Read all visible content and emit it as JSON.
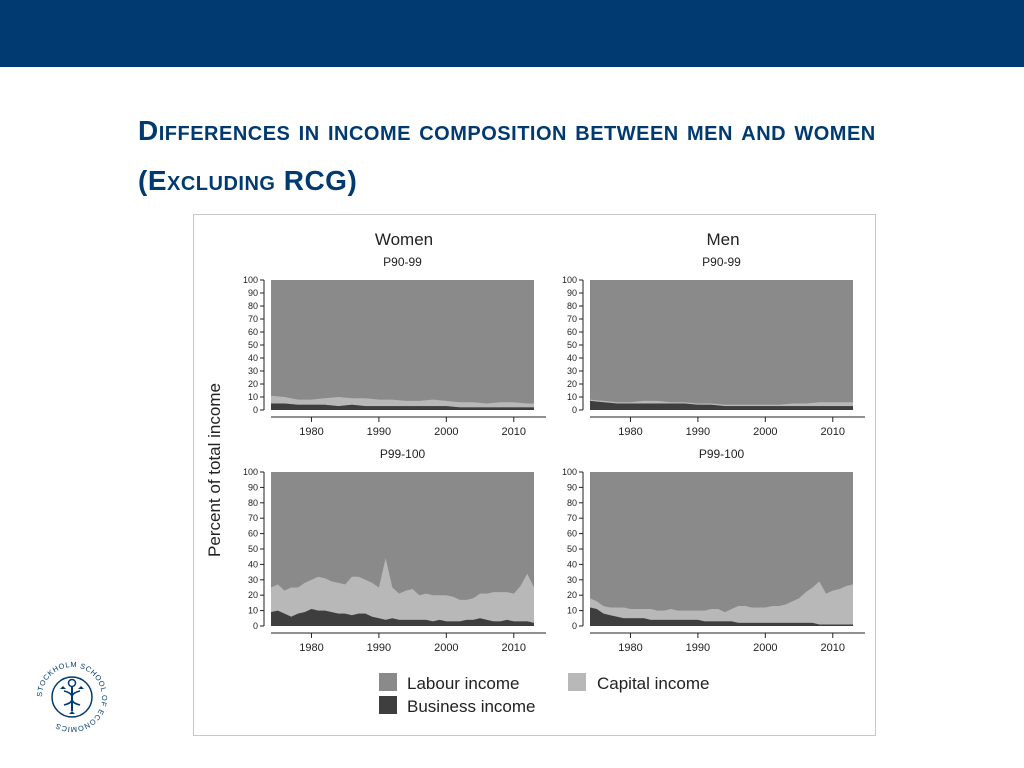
{
  "slide": {
    "title": "Differences in income composition between men and women (Excluding RCG)"
  },
  "logo": {
    "text": "STOCKHOLM SCHOOL OF ECONOMICS",
    "icon": "sse-emblem-icon",
    "color": "#003a70"
  },
  "colors": {
    "header_bar": "#003a70",
    "labour": "#8a8a8a",
    "capital": "#b8b8b8",
    "business": "#3e3e3e"
  },
  "chart_data": {
    "type": "area",
    "stacked": true,
    "ylabel": "Percent of total income",
    "ylim": [
      0,
      100
    ],
    "yticks": [
      0,
      10,
      20,
      30,
      40,
      50,
      60,
      70,
      80,
      90,
      100
    ],
    "xlim": [
      1974,
      2013
    ],
    "xticks": [
      1980,
      1990,
      2000,
      2010
    ],
    "legend": {
      "placement": "bottom",
      "items": [
        {
          "label": "Labour income",
          "key": "labour"
        },
        {
          "label": "Capital income",
          "key": "capital"
        },
        {
          "label": "Business income",
          "key": "business"
        }
      ]
    },
    "columns": [
      "Women",
      "Men"
    ],
    "rows": [
      "P90-99",
      "P99-100"
    ],
    "panels": [
      {
        "column": "Women",
        "group": "P90-99",
        "x": [
          1974,
          1976,
          1978,
          1980,
          1982,
          1984,
          1986,
          1988,
          1990,
          1992,
          1994,
          1996,
          1998,
          2000,
          2002,
          2004,
          2006,
          2008,
          2010,
          2012,
          2013
        ],
        "series": [
          {
            "name": "Business income",
            "key": "business",
            "values": [
              5,
              5,
              4,
              4,
              4,
              3,
              4,
              3,
              3,
              3,
              3,
              3,
              3,
              3,
              2,
              2,
              2,
              2,
              2,
              2,
              2
            ]
          },
          {
            "name": "Capital income",
            "key": "capital",
            "values": [
              6,
              5,
              4,
              4,
              5,
              7,
              5,
              6,
              5,
              5,
              4,
              4,
              5,
              4,
              4,
              4,
              3,
              4,
              4,
              3,
              3
            ]
          }
        ]
      },
      {
        "column": "Men",
        "group": "P90-99",
        "x": [
          1974,
          1976,
          1978,
          1980,
          1982,
          1984,
          1986,
          1988,
          1990,
          1992,
          1994,
          1996,
          1998,
          2000,
          2002,
          2004,
          2006,
          2008,
          2010,
          2012,
          2013
        ],
        "series": [
          {
            "name": "Business income",
            "key": "business",
            "values": [
              7,
              6,
              5,
              5,
              5,
              5,
              5,
              5,
              4,
              4,
              3,
              3,
              3,
              3,
              3,
              3,
              3,
              3,
              3,
              3,
              3
            ]
          },
          {
            "name": "Capital income",
            "key": "capital",
            "values": [
              1,
              1,
              1,
              1,
              2,
              2,
              1,
              1,
              1,
              1,
              1,
              1,
              1,
              1,
              1,
              2,
              2,
              3,
              3,
              3,
              3
            ]
          }
        ]
      },
      {
        "column": "Women",
        "group": "P99-100",
        "x": [
          1974,
          1975,
          1976,
          1977,
          1978,
          1979,
          1980,
          1981,
          1982,
          1983,
          1984,
          1985,
          1986,
          1987,
          1988,
          1989,
          1990,
          1991,
          1992,
          1993,
          1994,
          1995,
          1996,
          1997,
          1998,
          1999,
          2000,
          2001,
          2002,
          2003,
          2004,
          2005,
          2006,
          2007,
          2008,
          2009,
          2010,
          2011,
          2012,
          2013
        ],
        "series": [
          {
            "name": "Business income",
            "key": "business",
            "values": [
              9,
              10,
              8,
              6,
              8,
              9,
              11,
              10,
              10,
              9,
              8,
              8,
              7,
              8,
              8,
              6,
              5,
              4,
              5,
              4,
              4,
              4,
              4,
              4,
              3,
              4,
              3,
              3,
              3,
              4,
              4,
              5,
              4,
              3,
              3,
              4,
              3,
              3,
              3,
              2
            ]
          },
          {
            "name": "Capital income",
            "key": "capital",
            "values": [
              16,
              17,
              15,
              19,
              17,
              19,
              19,
              22,
              21,
              20,
              20,
              19,
              25,
              24,
              22,
              22,
              20,
              40,
              20,
              17,
              19,
              20,
              16,
              17,
              17,
              16,
              17,
              16,
              14,
              13,
              14,
              16,
              17,
              19,
              19,
              18,
              18,
              23,
              31,
              23
            ]
          }
        ]
      },
      {
        "column": "Men",
        "group": "P99-100",
        "x": [
          1974,
          1975,
          1976,
          1977,
          1978,
          1979,
          1980,
          1981,
          1982,
          1983,
          1984,
          1985,
          1986,
          1987,
          1988,
          1989,
          1990,
          1991,
          1992,
          1993,
          1994,
          1995,
          1996,
          1997,
          1998,
          1999,
          2000,
          2001,
          2002,
          2003,
          2004,
          2005,
          2006,
          2007,
          2008,
          2009,
          2010,
          2011,
          2012,
          2013
        ],
        "series": [
          {
            "name": "Business income",
            "key": "business",
            "values": [
              12,
              11,
              8,
              7,
              6,
              5,
              5,
              5,
              5,
              4,
              4,
              4,
              4,
              4,
              4,
              4,
              4,
              3,
              3,
              3,
              3,
              3,
              2,
              2,
              2,
              2,
              2,
              2,
              2,
              2,
              2,
              2,
              2,
              2,
              1,
              1,
              1,
              1,
              1,
              1
            ]
          },
          {
            "name": "Capital income",
            "key": "capital",
            "values": [
              6,
              5,
              5,
              5,
              6,
              7,
              6,
              6,
              6,
              7,
              6,
              6,
              7,
              6,
              6,
              6,
              6,
              7,
              8,
              8,
              6,
              8,
              11,
              11,
              10,
              10,
              10,
              11,
              11,
              12,
              14,
              16,
              20,
              23,
              28,
              20,
              22,
              23,
              25,
              26
            ]
          }
        ]
      }
    ]
  }
}
